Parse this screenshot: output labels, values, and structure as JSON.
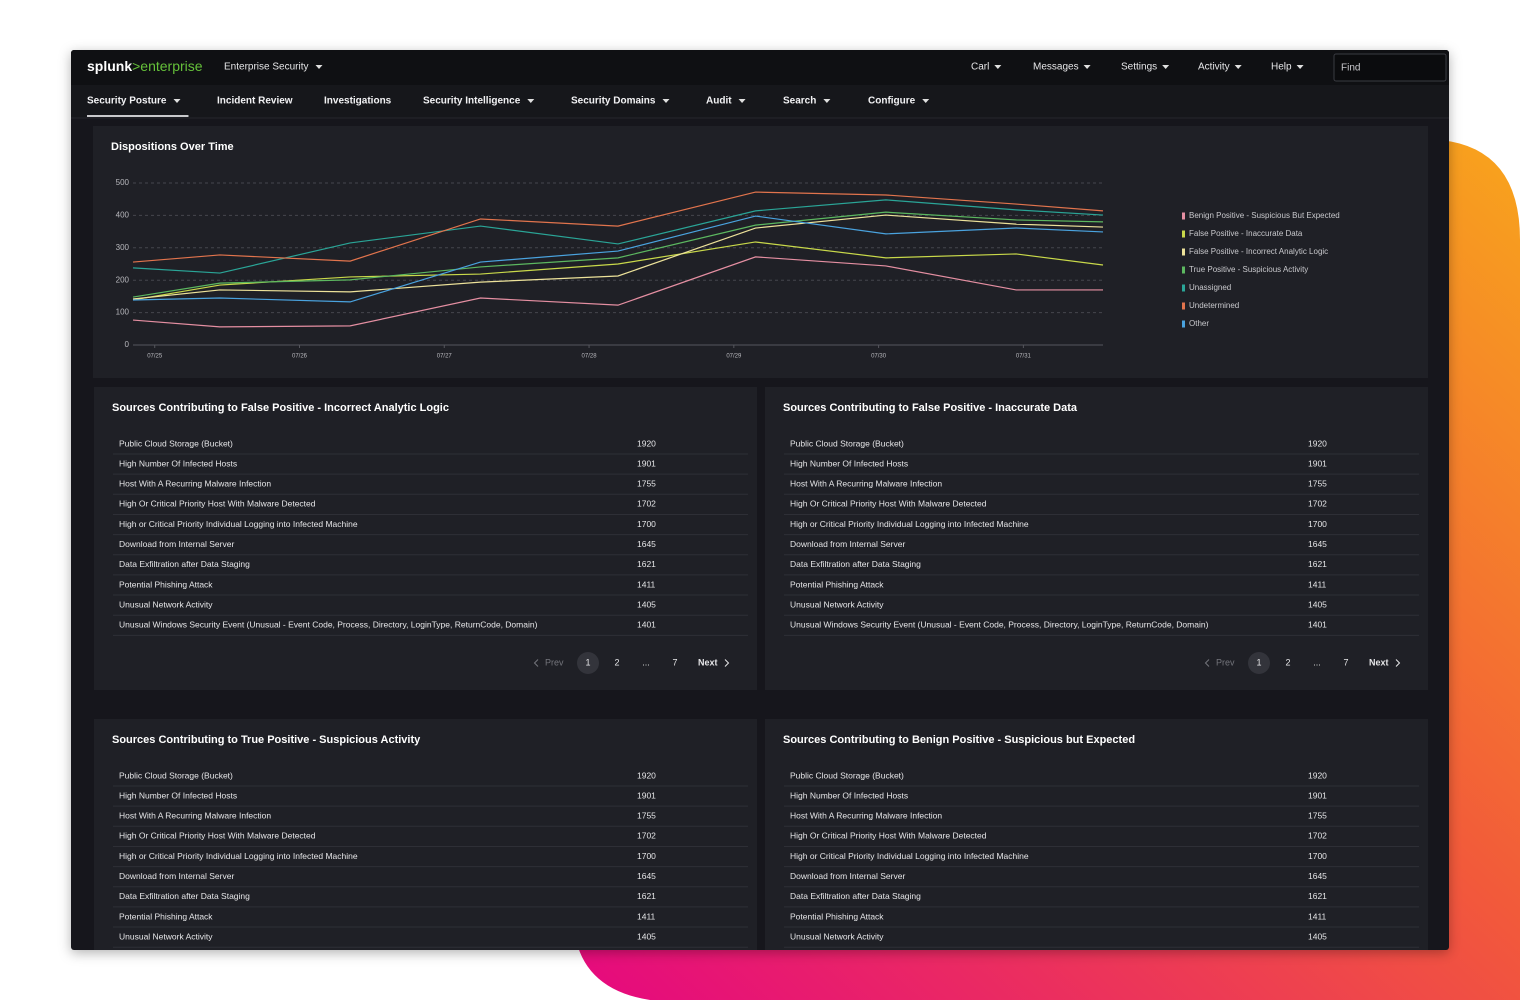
{
  "header": {
    "logo": "splunk",
    "logo_suffix": ">enterprise",
    "app": "Enterprise Security",
    "menu": [
      "Carl",
      "Messages",
      "Settings",
      "Activity",
      "Help"
    ],
    "search_placeholder": "Find"
  },
  "nav": {
    "items": [
      {
        "label": "Security Posture",
        "dropdown": true
      },
      {
        "label": "Incident Review",
        "dropdown": false
      },
      {
        "label": "Investigations",
        "dropdown": false
      },
      {
        "label": "Security Intelligence",
        "dropdown": true
      },
      {
        "label": "Security Domains",
        "dropdown": true
      },
      {
        "label": "Audit",
        "dropdown": true
      },
      {
        "label": "Search",
        "dropdown": true
      },
      {
        "label": "Configure",
        "dropdown": true
      }
    ],
    "active": 0
  },
  "chart_data": {
    "type": "line",
    "title": "Dispositions Over Time",
    "x": [
      -0.15,
      0.45,
      1.35,
      2.25,
      3.2,
      4.15,
      5.05,
      5.95,
      6.55
    ],
    "xlim": [
      -0.15,
      6.55
    ],
    "xticks": [
      {
        "value": 0,
        "label": "07/25"
      },
      {
        "value": 1,
        "label": "07/26"
      },
      {
        "value": 2,
        "label": "07/27"
      },
      {
        "value": 3,
        "label": "07/28"
      },
      {
        "value": 4,
        "label": "07/29"
      },
      {
        "value": 5,
        "label": "07/30"
      },
      {
        "value": 6,
        "label": "07/31"
      }
    ],
    "ylim": [
      0,
      500
    ],
    "yticks": [
      0,
      100,
      200,
      300,
      400,
      500
    ],
    "grid": true,
    "legend": "right",
    "series": [
      {
        "name": "Benign Positive - Suspicious But Expected",
        "color": "#e58fa2",
        "values": [
          77,
          56,
          59,
          145,
          123,
          272,
          244,
          170,
          170
        ]
      },
      {
        "name": "False Positive - Inaccurate Data",
        "color": "#c9d94a",
        "values": [
          139,
          185,
          210,
          219,
          250,
          318,
          269,
          281,
          247
        ]
      },
      {
        "name": "False Positive - Incorrect Analytic Logic",
        "color": "#ede29a",
        "values": [
          142,
          170,
          164,
          194,
          213,
          361,
          401,
          373,
          364
        ]
      },
      {
        "name": "True Positive - Suspicious Activity",
        "color": "#5cb860",
        "values": [
          148,
          191,
          201,
          241,
          269,
          370,
          410,
          386,
          380
        ]
      },
      {
        "name": "Unassigned",
        "color": "#2aa597",
        "values": [
          238,
          222,
          315,
          367,
          312,
          414,
          448,
          417,
          401
        ]
      },
      {
        "name": "Undetermined",
        "color": "#e2744d",
        "values": [
          256,
          278,
          259,
          389,
          367,
          472,
          463,
          435,
          414
        ]
      },
      {
        "name": "Other",
        "color": "#4aa3df",
        "values": [
          139,
          145,
          133,
          256,
          290,
          398,
          343,
          361,
          349
        ]
      }
    ]
  },
  "tables": [
    {
      "title": "Sources Contributing to False Positive - Incorrect Analytic Logic",
      "rows": [
        [
          "Public Cloud Storage (Bucket)",
          1920
        ],
        [
          "High Number Of Infected Hosts",
          1901
        ],
        [
          "Host With A Recurring Malware Infection",
          1755
        ],
        [
          "High Or Critical Priority Host With Malware Detected",
          1702
        ],
        [
          "High or Critical Priority Individual Logging into Infected Machine",
          1700
        ],
        [
          "Download from Internal Server",
          1645
        ],
        [
          "Data Exfiltration after Data Staging",
          1621
        ],
        [
          "Potential Phishing Attack",
          1411
        ],
        [
          "Unusual Network Activity",
          1405
        ],
        [
          "Unusual Windows Security Event (Unusual - Event Code, Process, Directory, LoginType, ReturnCode, Domain)",
          1401
        ]
      ],
      "pagination": [
        "Prev",
        "1",
        "2",
        "...",
        "7",
        "Next"
      ],
      "active": 1
    },
    {
      "title": "Sources Contributing to False Positive - Inaccurate Data",
      "rows": [
        [
          "Public Cloud Storage (Bucket)",
          1920
        ],
        [
          "High Number Of Infected Hosts",
          1901
        ],
        [
          "Host With A Recurring Malware Infection",
          1755
        ],
        [
          "High Or Critical Priority Host With Malware Detected",
          1702
        ],
        [
          "High or Critical Priority Individual Logging into Infected Machine",
          1700
        ],
        [
          "Download from Internal Server",
          1645
        ],
        [
          "Data Exfiltration after Data Staging",
          1621
        ],
        [
          "Potential Phishing Attack",
          1411
        ],
        [
          "Unusual Network Activity",
          1405
        ],
        [
          "Unusual Windows Security Event (Unusual - Event Code, Process, Directory, LoginType, ReturnCode, Domain)",
          1401
        ]
      ],
      "pagination": [
        "Prev",
        "1",
        "2",
        "...",
        "7",
        "Next"
      ],
      "active": 1
    },
    {
      "title": "Sources Contributing to True Positive - Suspicious Activity",
      "rows": [
        [
          "Public Cloud Storage (Bucket)",
          1920
        ],
        [
          "High Number Of Infected Hosts",
          1901
        ],
        [
          "Host With A Recurring Malware Infection",
          1755
        ],
        [
          "High Or Critical Priority Host With Malware Detected",
          1702
        ],
        [
          "High or Critical Priority Individual Logging into Infected Machine",
          1700
        ],
        [
          "Download from Internal Server",
          1645
        ],
        [
          "Data Exfiltration after Data Staging",
          1621
        ],
        [
          "Potential Phishing Attack",
          1411
        ],
        [
          "Unusual Network Activity",
          1405
        ]
      ]
    },
    {
      "title": "Sources Contributing to Benign Positive - Suspicious but Expected",
      "rows": [
        [
          "Public Cloud Storage (Bucket)",
          1920
        ],
        [
          "High Number Of Infected Hosts",
          1901
        ],
        [
          "Host With A Recurring Malware Infection",
          1755
        ],
        [
          "High Or Critical Priority Host With Malware Detected",
          1702
        ],
        [
          "High or Critical Priority Individual Logging into Infected Machine",
          1700
        ],
        [
          "Download from Internal Server",
          1645
        ],
        [
          "Data Exfiltration after Data Staging",
          1621
        ],
        [
          "Potential Phishing Attack",
          1411
        ],
        [
          "Unusual Network Activity",
          1405
        ]
      ]
    }
  ]
}
